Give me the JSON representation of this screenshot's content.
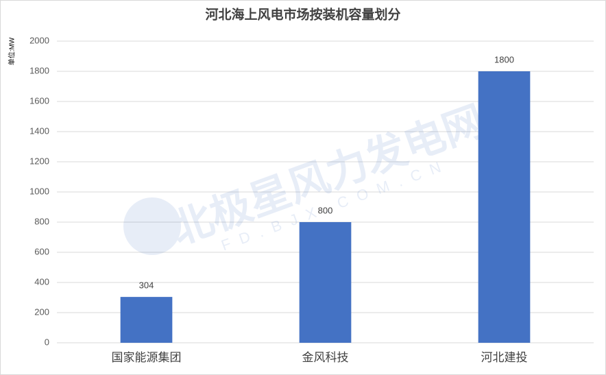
{
  "chart_data": {
    "type": "bar",
    "title": "河北海上风电市场按装机容量划分",
    "y_label": "单位:MW",
    "categories": [
      "国家能源集团",
      "金风科技",
      "河北建投"
    ],
    "values": [
      304,
      800,
      1800
    ],
    "color": "#4472c4",
    "ylim": [
      0,
      2000
    ],
    "yticks": [
      0,
      200,
      400,
      600,
      800,
      1000,
      1200,
      1400,
      1600,
      1800,
      2000
    ],
    "grid": true,
    "watermark": "北极星风力发电网",
    "watermark_url": "FD.BJX.COM.CN"
  }
}
